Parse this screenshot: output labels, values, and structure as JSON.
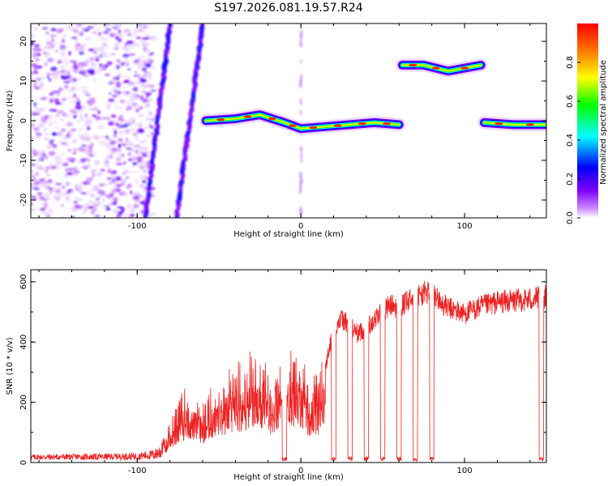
{
  "title": "S197.2026.081.19.57.R24",
  "chart_data": [
    {
      "type": "heatmap",
      "name": "spectrogram",
      "xlabel": "Height of straight line (km)",
      "ylabel": "Frequency (Hz)",
      "xlim": [
        -165,
        150
      ],
      "ylim": [
        -24.5,
        24.5
      ],
      "xticks": [
        -100,
        0,
        100
      ],
      "yticks": [
        -20,
        -10,
        0,
        10,
        20
      ],
      "xtick_labels": [
        "-100",
        "0",
        "100"
      ],
      "ytick_labels": [
        "-20",
        "-10",
        "0",
        "10",
        "20"
      ],
      "colorbar": {
        "label": "Normalized spectral amplitude",
        "range": [
          0,
          1
        ],
        "ticks": [
          0,
          0.2,
          0.4,
          0.6,
          0.8
        ],
        "tick_labels": [
          "0.0",
          "0.2",
          "0.4",
          "0.6",
          "0.8"
        ],
        "colors": [
          "#ffffff",
          "#cc88ff",
          "#8000ff",
          "#0000ff",
          "#00ffff",
          "#00ff00",
          "#ffff00",
          "#ff8000",
          "#ff0000"
        ]
      },
      "features": [
        {
          "kind": "noise_field",
          "x_range": [
            -165,
            -90
          ],
          "y_range": [
            -24.5,
            24.5
          ]
        },
        {
          "kind": "diagonal_streak",
          "x_range": [
            -95,
            -80
          ],
          "y_range": [
            -24.5,
            24
          ]
        },
        {
          "kind": "diagonal_streak",
          "x_range": [
            -76,
            -60
          ],
          "y_range": [
            -24.5,
            24
          ]
        },
        {
          "kind": "ridge",
          "points": [
            [
              -58,
              0
            ],
            [
              -40,
              0.5
            ],
            [
              -25,
              1.5
            ],
            [
              -10,
              -0.5
            ],
            [
              0,
              -2
            ],
            [
              15,
              -1.5
            ],
            [
              30,
              -1
            ],
            [
              45,
              -0.5
            ],
            [
              60,
              -1
            ]
          ]
        },
        {
          "kind": "ridge",
          "points": [
            [
              62,
              14
            ],
            [
              75,
              14
            ],
            [
              90,
              12.5
            ],
            [
              110,
              14
            ]
          ]
        },
        {
          "kind": "ridge",
          "points": [
            [
              112,
              -0.5
            ],
            [
              130,
              -1
            ],
            [
              150,
              -1
            ]
          ]
        },
        {
          "kind": "vertical_line",
          "x": 0,
          "y_range": [
            -24.5,
            24.5
          ]
        }
      ]
    },
    {
      "type": "line",
      "name": "snr",
      "xlabel": "Height of straight line (km)",
      "ylabel": "SNR (10 * v/v)",
      "xlim": [
        -165,
        150
      ],
      "ylim": [
        0,
        640
      ],
      "xticks": [
        -100,
        0,
        100
      ],
      "yticks": [
        0,
        200,
        400,
        600
      ],
      "xtick_labels": [
        "-100",
        "0",
        "100"
      ],
      "ytick_labels": [
        "0",
        "200",
        "400",
        "600"
      ],
      "color": "#ee2222",
      "envelope": [
        [
          -165,
          20
        ],
        [
          -120,
          22
        ],
        [
          -100,
          25
        ],
        [
          -90,
          35
        ],
        [
          -85,
          60
        ],
        [
          -80,
          110
        ],
        [
          -75,
          180
        ],
        [
          -70,
          220
        ],
        [
          -65,
          200
        ],
        [
          -60,
          180
        ],
        [
          -55,
          210
        ],
        [
          -50,
          240
        ],
        [
          -45,
          270
        ],
        [
          -40,
          300
        ],
        [
          -35,
          280
        ],
        [
          -30,
          320
        ],
        [
          -25,
          290
        ],
        [
          -20,
          270
        ],
        [
          -15,
          260
        ],
        [
          -10,
          310
        ],
        [
          -5,
          340
        ],
        [
          0,
          310
        ],
        [
          5,
          240
        ],
        [
          10,
          250
        ],
        [
          15,
          330
        ],
        [
          20,
          470
        ],
        [
          25,
          500
        ],
        [
          30,
          480
        ],
        [
          35,
          450
        ],
        [
          40,
          470
        ],
        [
          45,
          500
        ],
        [
          50,
          530
        ],
        [
          55,
          550
        ],
        [
          60,
          540
        ],
        [
          65,
          560
        ],
        [
          70,
          580
        ],
        [
          75,
          590
        ],
        [
          80,
          600
        ],
        [
          85,
          560
        ],
        [
          90,
          540
        ],
        [
          100,
          520
        ],
        [
          110,
          545
        ],
        [
          120,
          560
        ],
        [
          130,
          565
        ],
        [
          140,
          570
        ],
        [
          150,
          580
        ]
      ],
      "dropouts": [
        -10,
        20,
        30,
        40,
        50,
        60,
        70,
        80,
        147
      ]
    }
  ]
}
